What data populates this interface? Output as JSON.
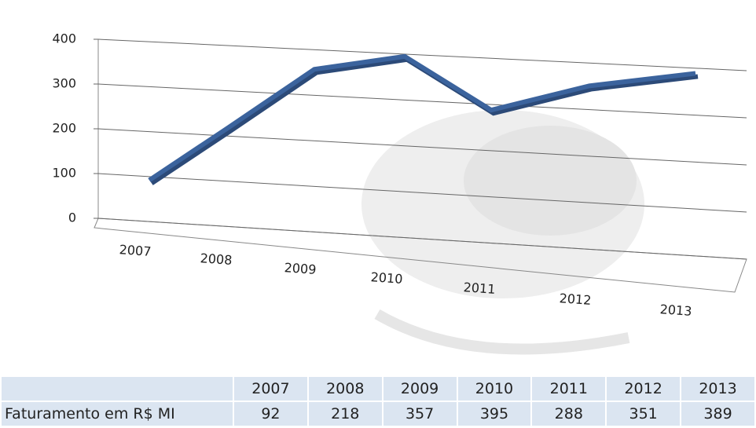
{
  "chart_data": {
    "type": "line",
    "categories": [
      "2007",
      "2008",
      "2009",
      "2010",
      "2011",
      "2012",
      "2013"
    ],
    "series": [
      {
        "name": "Faturamento em R$ MI",
        "color": "#3b639d",
        "values": [
          92,
          218,
          357,
          395,
          288,
          351,
          389
        ]
      }
    ],
    "ylim": [
      0,
      400
    ],
    "yticks": [
      0,
      100,
      200,
      300,
      400
    ],
    "grid": true
  }
}
